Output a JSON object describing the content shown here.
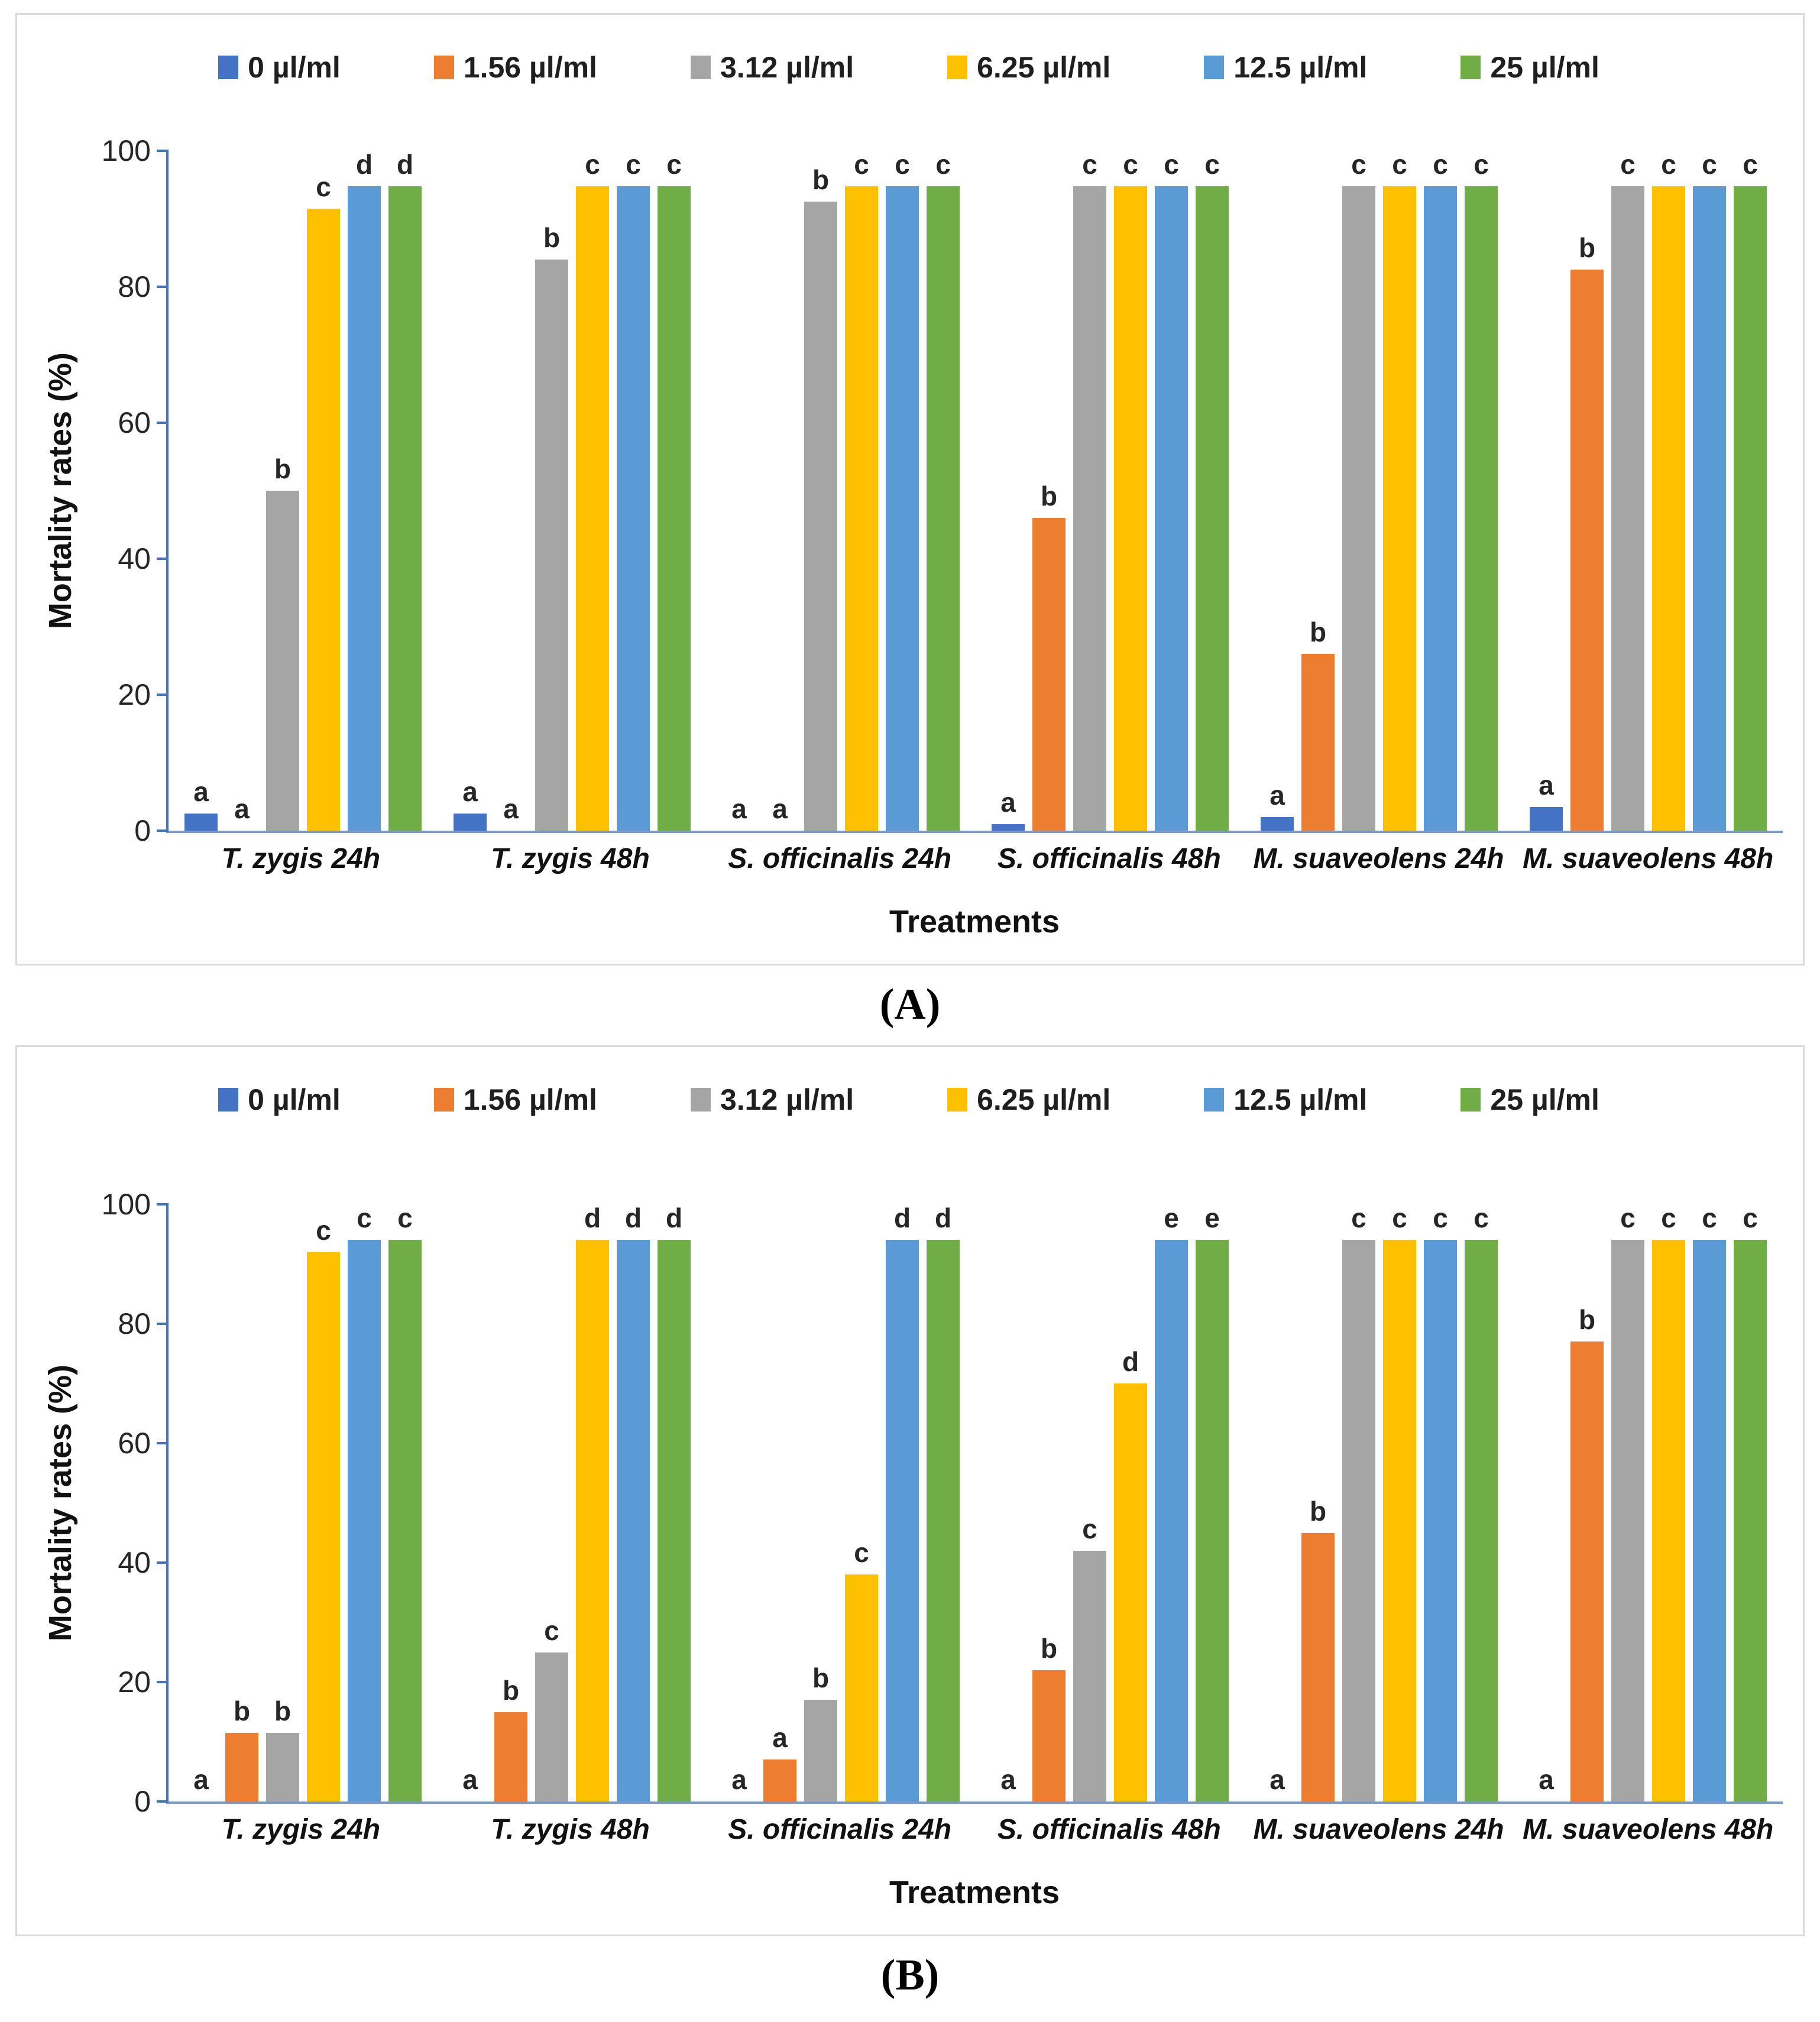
{
  "figure": {
    "panels": [
      {
        "caption": "(A)"
      },
      {
        "caption": "(B)"
      }
    ]
  },
  "chart_data": [
    {
      "type": "bar",
      "panel": "A",
      "title": "",
      "xlabel": "Treatments",
      "ylabel": "Mortality rates (%)",
      "ylim": [
        0,
        100
      ],
      "yticks": [
        0,
        20,
        40,
        60,
        80,
        100
      ],
      "grid": false,
      "legend_position": "top-center",
      "categories": [
        "T. zygis 24h",
        "T. zygis 48h",
        "S. officinalis 24h",
        "S. officinalis 48h",
        "M. suaveolens 24h",
        "M. suaveolens 48h"
      ],
      "series": [
        {
          "name": "0 µl/ml",
          "color": "#4472C4",
          "values": [
            2.5,
            2.5,
            0,
            1,
            2,
            3.5
          ],
          "letters": [
            "a",
            "a",
            "a",
            "a",
            "a",
            "a"
          ]
        },
        {
          "name": "1.56 µl/ml",
          "color": "#ED7D31",
          "values": [
            0,
            0,
            0,
            46,
            26,
            82.5
          ],
          "letters": [
            "a",
            "a",
            "a",
            "b",
            "b",
            "b"
          ]
        },
        {
          "name": "3.12 µl/ml",
          "color": "#A5A5A5",
          "values": [
            50,
            84,
            92.5,
            100,
            98.5,
            100
          ],
          "letters": [
            "b",
            "b",
            "b",
            "c",
            "c",
            "c"
          ]
        },
        {
          "name": "6.25 µl/ml",
          "color": "#FFC000",
          "values": [
            91.5,
            100,
            100,
            100,
            100,
            100
          ],
          "letters": [
            "c",
            "c",
            "c",
            "c",
            "c",
            "c"
          ]
        },
        {
          "name": "12.5 µl/ml",
          "color": "#5B9BD5",
          "values": [
            99,
            100,
            100,
            100,
            100,
            100
          ],
          "letters": [
            "d",
            "c",
            "c",
            "c",
            "c",
            "c"
          ]
        },
        {
          "name": "25 µl/ml",
          "color": "#70AD47",
          "values": [
            100,
            100,
            100,
            100,
            100,
            100
          ],
          "letters": [
            "d",
            "c",
            "c",
            "c",
            "c",
            "c"
          ]
        }
      ]
    },
    {
      "type": "bar",
      "panel": "B",
      "title": "",
      "xlabel": "Treatments",
      "ylabel": "Mortality rates (%)",
      "ylim": [
        0,
        100
      ],
      "yticks": [
        0,
        20,
        40,
        60,
        80,
        100
      ],
      "grid": false,
      "legend_position": "top-center",
      "categories": [
        "T. zygis 24h",
        "T. zygis 48h",
        "S. officinalis 24h",
        "S. officinalis 48h",
        "M. suaveolens 24h",
        "M. suaveolens 48h"
      ],
      "series": [
        {
          "name": "0 µl/ml",
          "color": "#4472C4",
          "values": [
            0,
            0,
            0,
            0,
            0,
            0
          ],
          "letters": [
            "a",
            "a",
            "a",
            "a",
            "a",
            "a"
          ]
        },
        {
          "name": "1.56 µl/ml",
          "color": "#ED7D31",
          "values": [
            11.5,
            15,
            7,
            22,
            45,
            77
          ],
          "letters": [
            "b",
            "b",
            "a",
            "b",
            "b",
            "b"
          ]
        },
        {
          "name": "3.12 µl/ml",
          "color": "#A5A5A5",
          "values": [
            11.5,
            25,
            17,
            42,
            98.5,
            100
          ],
          "letters": [
            "b",
            "c",
            "b",
            "c",
            "c",
            "c"
          ]
        },
        {
          "name": "6.25 µl/ml",
          "color": "#FFC000",
          "values": [
            92,
            100,
            38,
            70,
            100,
            100
          ],
          "letters": [
            "c",
            "d",
            "c",
            "d",
            "c",
            "c"
          ]
        },
        {
          "name": "12.5 µl/ml",
          "color": "#5B9BD5",
          "values": [
            100,
            100,
            98.5,
            100,
            100,
            100
          ],
          "letters": [
            "c",
            "d",
            "d",
            "e",
            "c",
            "c"
          ]
        },
        {
          "name": "25 µl/ml",
          "color": "#70AD47",
          "values": [
            100,
            100,
            100,
            100,
            100,
            100
          ],
          "letters": [
            "c",
            "d",
            "d",
            "e",
            "c",
            "c"
          ]
        }
      ]
    }
  ]
}
